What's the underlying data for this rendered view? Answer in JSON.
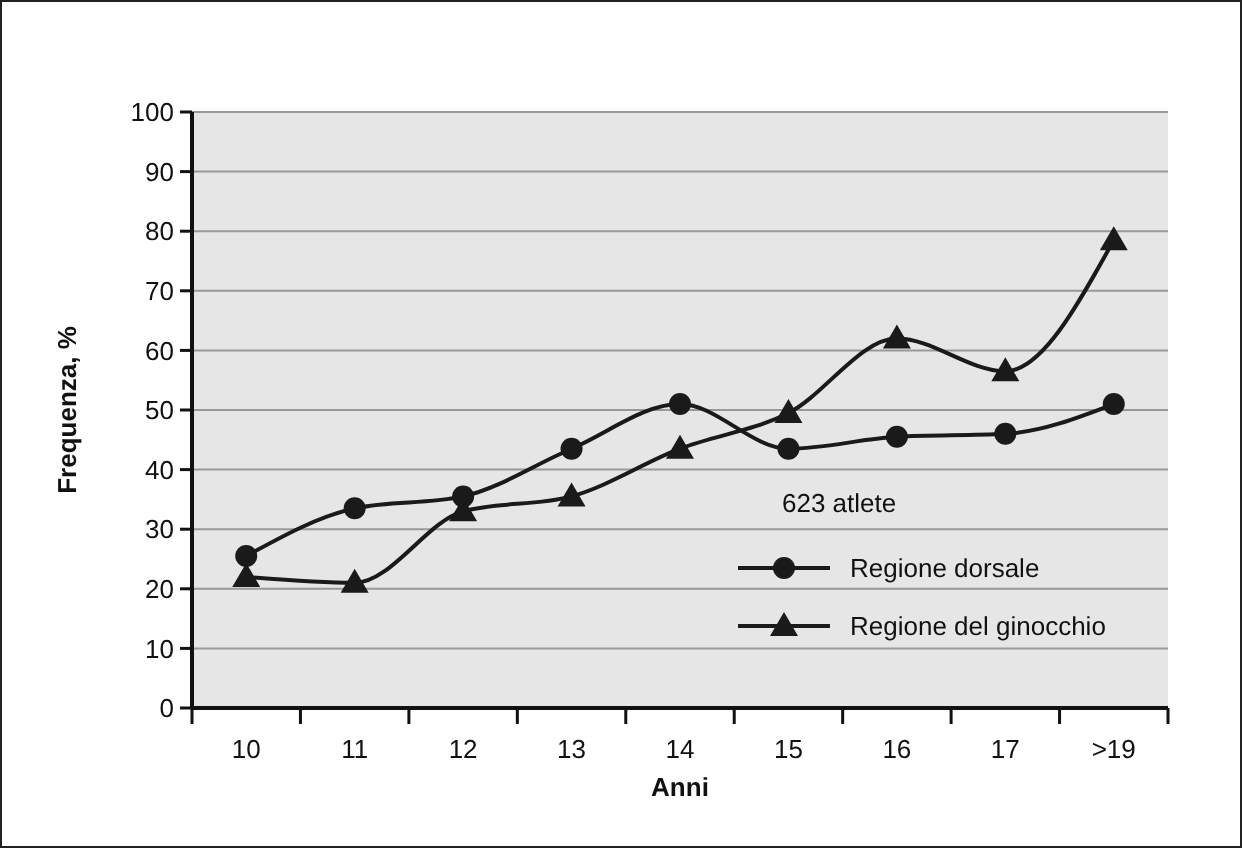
{
  "chart_data": {
    "type": "line",
    "xlabel": "Anni",
    "ylabel": "Frequenza, %",
    "legend_title": "623 atlete",
    "categories": [
      "10",
      "11",
      "12",
      "13",
      "14",
      "15",
      "16",
      "17",
      ">19"
    ],
    "series": [
      {
        "name": "Regione dorsale",
        "color": "#1a1a1a",
        "marker": "circle",
        "values": [
          25.5,
          33.5,
          35.5,
          43.5,
          51,
          43.5,
          45.5,
          46,
          51
        ]
      },
      {
        "name": "Regione del ginocchio",
        "color": "#1a1a1a",
        "marker": "triangle",
        "values": [
          22,
          21,
          33,
          35.5,
          43.5,
          49.5,
          62,
          56.5,
          78.5
        ]
      }
    ],
    "ylim": [
      0,
      100
    ],
    "yticks": [
      0,
      10,
      20,
      30,
      40,
      50,
      60,
      70,
      80,
      90,
      100
    ],
    "grid": "y",
    "legend": "bottom right",
    "line_style": "solid"
  }
}
